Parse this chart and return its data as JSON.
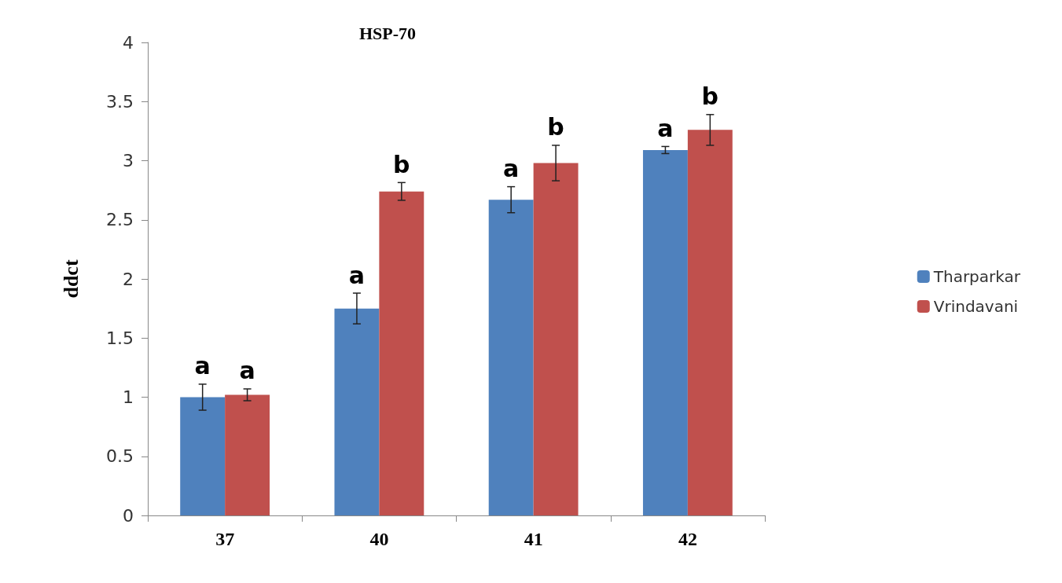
{
  "chart_data": {
    "type": "bar",
    "title": "HSP-70",
    "ylabel": "ddct",
    "categories": [
      "37",
      "40",
      "41",
      "42"
    ],
    "series": [
      {
        "name": "Tharparkar",
        "color": "#4f81bd",
        "values": [
          1.0,
          1.75,
          2.67,
          3.09
        ],
        "errors": [
          0.11,
          0.13,
          0.11,
          0.03
        ]
      },
      {
        "name": "Vrindavani",
        "color": "#c0504d",
        "values": [
          1.02,
          2.74,
          2.98,
          3.26
        ],
        "errors": [
          0.05,
          0.075,
          0.15,
          0.13
        ]
      }
    ],
    "ylim": [
      0,
      4
    ],
    "yticks": [
      0,
      0.5,
      1,
      1.5,
      2,
      2.5,
      3,
      3.5,
      4
    ],
    "grid": false,
    "legend": "right",
    "annotations": [
      {
        "text": "a",
        "x": "37",
        "y": 1.0
      },
      {
        "text": "a",
        "x": "37",
        "y": 1.02
      },
      {
        "text": "a",
        "x": "40",
        "y": 1.75
      },
      {
        "text": "b",
        "x": "40",
        "y": 2.74
      },
      {
        "text": "a",
        "x": "41",
        "y": 2.67
      },
      {
        "text": "b",
        "x": "41",
        "y": 2.98
      },
      {
        "text": "a",
        "x": "42",
        "y": 3.09
      },
      {
        "text": "b",
        "x": "42",
        "y": 3.26
      }
    ]
  }
}
